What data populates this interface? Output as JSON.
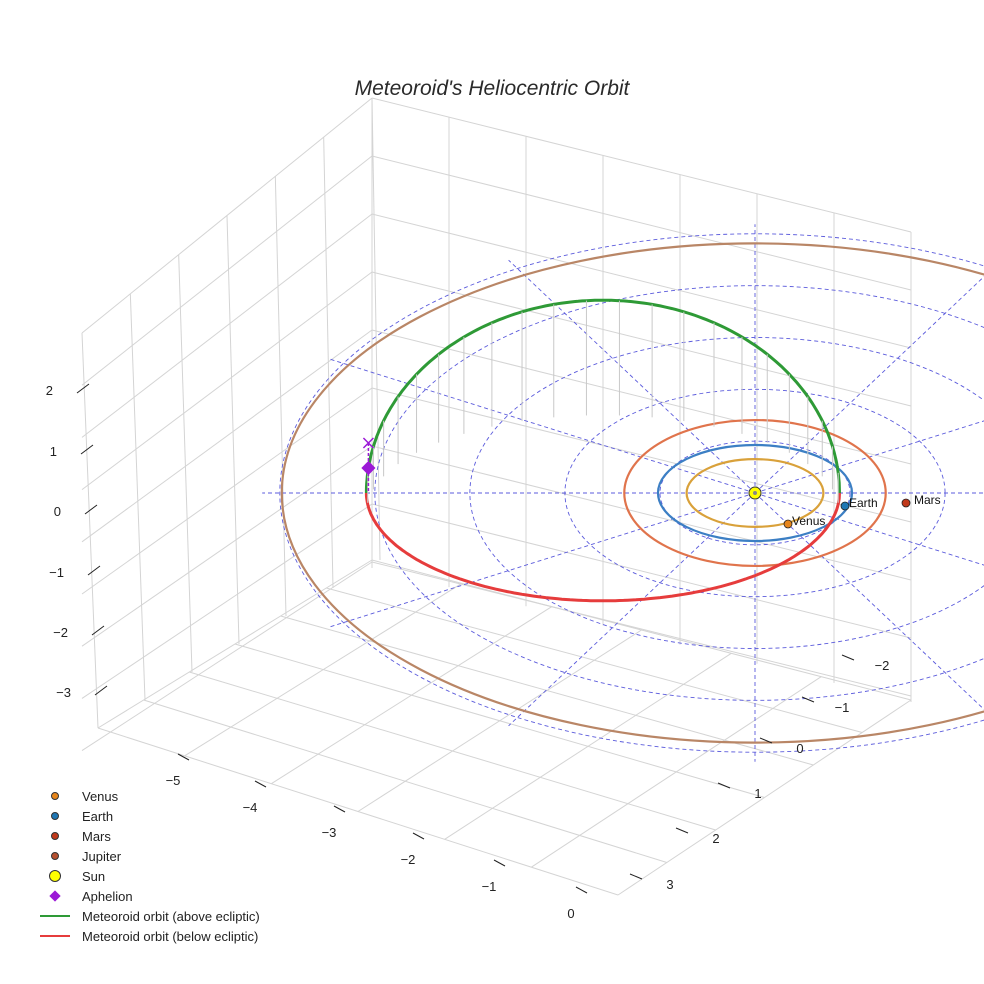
{
  "chart_data": {
    "type": "line",
    "title": "Meteoroid's Heliocentric Orbit",
    "axes": {
      "x": {
        "label": "",
        "ticks": [
          -5,
          -4,
          -3,
          -2,
          -1,
          0
        ]
      },
      "y": {
        "label": "",
        "ticks": [
          -2,
          -1,
          0,
          1,
          2,
          3
        ]
      },
      "z": {
        "label": "",
        "ticks": [
          2,
          1,
          0,
          -1,
          -2,
          -3
        ]
      }
    },
    "grid": true,
    "legend_position": "bottom-left",
    "planet_orbits": [
      {
        "name": "Venus",
        "a": 0.72,
        "color": "#d9a13a"
      },
      {
        "name": "Earth",
        "a": 1.0,
        "color": "#3c7fc4"
      },
      {
        "name": "Mars",
        "a": 1.52,
        "color": "#e0744c"
      },
      {
        "name": "Jupiter",
        "a": 5.2,
        "color": "#b98666"
      }
    ],
    "points": [
      {
        "name": "Venus",
        "label": "Venus",
        "color": "#e6851a"
      },
      {
        "name": "Earth",
        "label": "Earth",
        "color": "#1f77b4"
      },
      {
        "name": "Mars",
        "label": "Mars",
        "color": "#c0391b"
      },
      {
        "name": "Sun",
        "color": "#ffff00"
      }
    ],
    "meteoroid_orbit": {
      "perihelion_AU": 1.0,
      "aphelion_AU": 4.6,
      "aphelion_height_AU": 0.45,
      "above_color": "#2e9a36",
      "below_color": "#e63c3c",
      "aphelion_color": "#9b19d6"
    },
    "legend": [
      {
        "label": "Venus",
        "kind": "dot",
        "color": "#e6851a"
      },
      {
        "label": "Earth",
        "kind": "dot",
        "color": "#1f77b4"
      },
      {
        "label": "Mars",
        "kind": "dot",
        "color": "#c0391b"
      },
      {
        "label": "Jupiter",
        "kind": "dot",
        "color": "#b5502f"
      },
      {
        "label": "Sun",
        "kind": "sun",
        "color": "#ffff00"
      },
      {
        "label": "Aphelion",
        "kind": "diamond",
        "color": "#9b19d6"
      },
      {
        "label": "Meteoroid orbit (above ecliptic)",
        "kind": "line",
        "color": "#2e9a36"
      },
      {
        "label": "Meteoroid orbit (below ecliptic)",
        "kind": "line",
        "color": "#e63c3c"
      }
    ]
  }
}
